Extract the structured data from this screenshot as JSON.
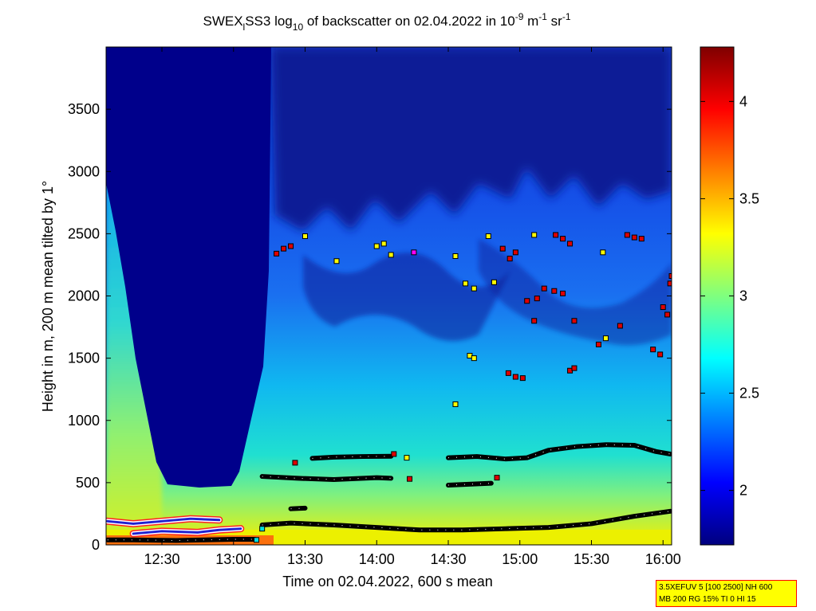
{
  "chart_data": {
    "type": "heatmap",
    "title": {
      "part1": "SWEX",
      "sub1": "l",
      "part2": "SS3 log",
      "sub2": "10",
      "part3": " of backscatter on 02.04.2022 in 10",
      "sup1": "-9",
      "part4": " m",
      "sup2": "-1",
      "part5": " sr",
      "sup3": "-1"
    },
    "xlabel": "Time on 02.04.2022, 600 s mean",
    "ylabel": "Height in m, 200 m mean tilted by 1°",
    "x_ticks": [
      {
        "label": "12:30",
        "hour": 12.5
      },
      {
        "label": "13:00",
        "hour": 13.0
      },
      {
        "label": "13:30",
        "hour": 13.5
      },
      {
        "label": "14:00",
        "hour": 14.0
      },
      {
        "label": "14:30",
        "hour": 14.5
      },
      {
        "label": "15:00",
        "hour": 15.0
      },
      {
        "label": "15:30",
        "hour": 15.5
      },
      {
        "label": "16:00",
        "hour": 16.0
      }
    ],
    "xlim_hours": [
      12.11,
      16.06
    ],
    "y_ticks": [
      0,
      500,
      1000,
      1500,
      2000,
      2500,
      3000,
      3500
    ],
    "ylim": [
      0,
      4000
    ],
    "colorbar": {
      "ticks": [
        "2",
        "2.5",
        "3",
        "3.5",
        "4"
      ],
      "tick_values": [
        2,
        2.5,
        3,
        3.5,
        4
      ],
      "range": [
        1.72,
        4.28
      ]
    },
    "cloud_base_layers": [
      {
        "x": [
          13.2,
          13.4,
          13.7,
          14.0,
          14.3,
          14.6,
          14.9,
          15.2,
          15.5,
          15.8,
          16.05
        ],
        "y": [
          160,
          175,
          160,
          140,
          120,
          120,
          130,
          140,
          170,
          230,
          270
        ]
      },
      {
        "x": [
          13.2,
          13.45,
          13.7,
          14.0,
          14.1
        ],
        "y": [
          550,
          535,
          525,
          540,
          535
        ]
      },
      {
        "x": [
          13.55,
          13.7,
          13.9,
          14.1
        ],
        "y": [
          695,
          705,
          710,
          712
        ]
      },
      {
        "x": [
          14.5,
          14.7,
          14.9,
          15.05,
          15.2,
          15.4,
          15.6,
          15.8,
          15.95,
          16.05
        ],
        "y": [
          700,
          710,
          690,
          700,
          760,
          790,
          805,
          800,
          750,
          730
        ]
      },
      {
        "x": [
          14.5,
          14.8
        ],
        "y": [
          480,
          495
        ]
      },
      {
        "x": [
          13.4,
          13.5
        ],
        "y": [
          290,
          295
        ]
      },
      {
        "x": [
          12.12,
          12.3,
          12.6,
          12.8,
          13.0,
          13.15
        ],
        "y": [
          40,
          40,
          35,
          40,
          45,
          45
        ]
      }
    ],
    "aerosol_layers": [
      {
        "x": [
          12.12,
          12.3,
          12.5,
          12.7,
          12.9
        ],
        "y": [
          190,
          170,
          190,
          210,
          200
        ]
      },
      {
        "x": [
          12.3,
          12.5,
          12.75,
          12.9,
          13.05
        ],
        "y": [
          90,
          110,
          100,
          120,
          130
        ]
      }
    ],
    "markers": [
      {
        "x": 13.3,
        "y": 2340,
        "c": "red"
      },
      {
        "x": 13.35,
        "y": 2380,
        "c": "red"
      },
      {
        "x": 13.4,
        "y": 2400,
        "c": "red"
      },
      {
        "x": 13.5,
        "y": 2480,
        "c": "yellow"
      },
      {
        "x": 13.72,
        "y": 2280,
        "c": "yellow"
      },
      {
        "x": 14.0,
        "y": 2400,
        "c": "yellow"
      },
      {
        "x": 14.05,
        "y": 2420,
        "c": "yellow"
      },
      {
        "x": 14.1,
        "y": 2330,
        "c": "yellow"
      },
      {
        "x": 14.26,
        "y": 2350,
        "c": "magenta"
      },
      {
        "x": 14.55,
        "y": 2320,
        "c": "yellow"
      },
      {
        "x": 14.62,
        "y": 2100,
        "c": "yellow"
      },
      {
        "x": 14.68,
        "y": 2060,
        "c": "yellow"
      },
      {
        "x": 14.78,
        "y": 2480,
        "c": "yellow"
      },
      {
        "x": 14.82,
        "y": 2110,
        "c": "yellow"
      },
      {
        "x": 14.88,
        "y": 2380,
        "c": "red"
      },
      {
        "x": 14.93,
        "y": 2300,
        "c": "red"
      },
      {
        "x": 14.97,
        "y": 2350,
        "c": "red"
      },
      {
        "x": 15.1,
        "y": 2490,
        "c": "yellow"
      },
      {
        "x": 15.05,
        "y": 1960,
        "c": "red"
      },
      {
        "x": 15.12,
        "y": 1980,
        "c": "red"
      },
      {
        "x": 15.17,
        "y": 2060,
        "c": "red"
      },
      {
        "x": 15.24,
        "y": 2040,
        "c": "red"
      },
      {
        "x": 15.3,
        "y": 2020,
        "c": "red"
      },
      {
        "x": 15.25,
        "y": 2490,
        "c": "red"
      },
      {
        "x": 15.3,
        "y": 2460,
        "c": "red"
      },
      {
        "x": 15.35,
        "y": 2420,
        "c": "red"
      },
      {
        "x": 15.1,
        "y": 1800,
        "c": "red"
      },
      {
        "x": 15.38,
        "y": 1800,
        "c": "red"
      },
      {
        "x": 15.58,
        "y": 2350,
        "c": "yellow"
      },
      {
        "x": 15.55,
        "y": 1610,
        "c": "red"
      },
      {
        "x": 15.6,
        "y": 1660,
        "c": "yellow"
      },
      {
        "x": 15.7,
        "y": 1760,
        "c": "red"
      },
      {
        "x": 15.75,
        "y": 2490,
        "c": "red"
      },
      {
        "x": 15.8,
        "y": 2470,
        "c": "red"
      },
      {
        "x": 15.85,
        "y": 2460,
        "c": "red"
      },
      {
        "x": 15.93,
        "y": 1570,
        "c": "red"
      },
      {
        "x": 15.98,
        "y": 1530,
        "c": "red"
      },
      {
        "x": 16.0,
        "y": 1910,
        "c": "red"
      },
      {
        "x": 16.03,
        "y": 1850,
        "c": "red"
      },
      {
        "x": 16.05,
        "y": 2100,
        "c": "red"
      },
      {
        "x": 16.06,
        "y": 2160,
        "c": "red"
      },
      {
        "x": 14.92,
        "y": 1380,
        "c": "red"
      },
      {
        "x": 14.97,
        "y": 1350,
        "c": "red"
      },
      {
        "x": 15.02,
        "y": 1340,
        "c": "red"
      },
      {
        "x": 15.35,
        "y": 1400,
        "c": "red"
      },
      {
        "x": 15.38,
        "y": 1420,
        "c": "red"
      },
      {
        "x": 14.65,
        "y": 1520,
        "c": "yellow"
      },
      {
        "x": 14.68,
        "y": 1500,
        "c": "yellow"
      },
      {
        "x": 14.55,
        "y": 1130,
        "c": "yellow"
      },
      {
        "x": 14.21,
        "y": 700,
        "c": "yellow"
      },
      {
        "x": 14.12,
        "y": 730,
        "c": "red"
      },
      {
        "x": 14.23,
        "y": 530,
        "c": "red"
      },
      {
        "x": 14.84,
        "y": 540,
        "c": "red"
      },
      {
        "x": 13.43,
        "y": 660,
        "c": "red"
      },
      {
        "x": 13.2,
        "y": 130,
        "c": "cyan"
      },
      {
        "x": 13.16,
        "y": 40,
        "c": "cyan"
      }
    ]
  },
  "info_box": {
    "line1": "3.5XEFUV 5 [100 2500] NH 600",
    "line2": "MB 200 RG 15% TI 0 HI 15"
  }
}
